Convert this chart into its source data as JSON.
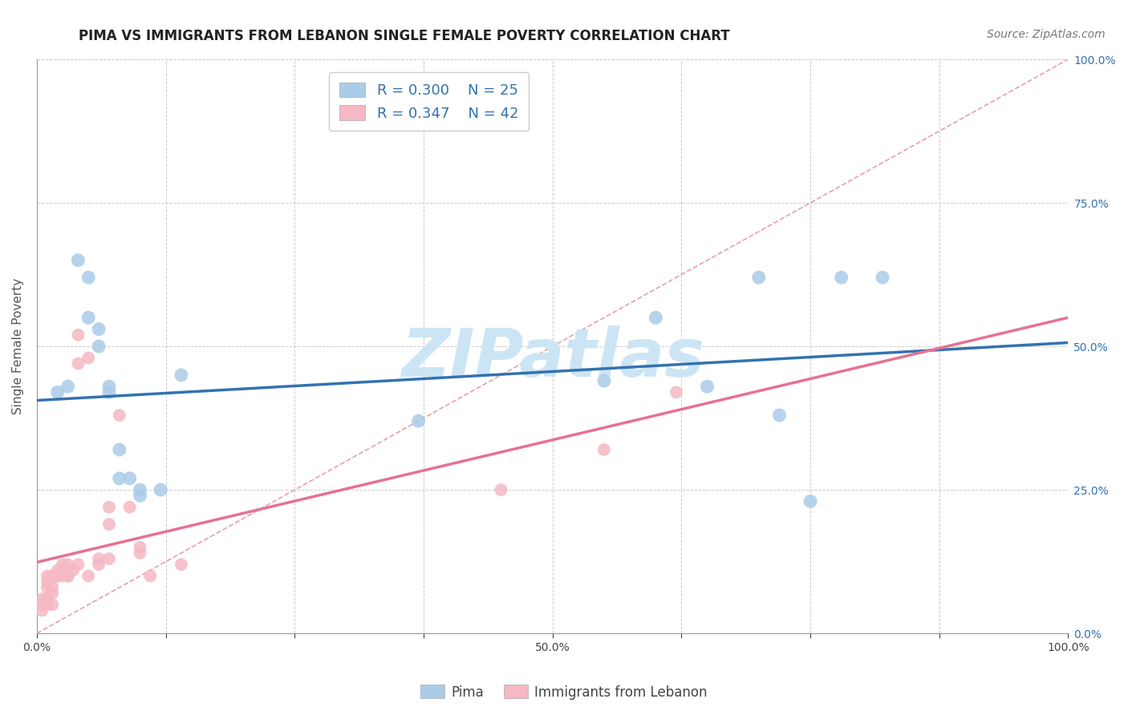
{
  "title": "PIMA VS IMMIGRANTS FROM LEBANON SINGLE FEMALE POVERTY CORRELATION CHART",
  "source": "Source: ZipAtlas.com",
  "ylabel": "Single Female Poverty",
  "watermark": "ZIPatlas",
  "legend_r1": "R = 0.300",
  "legend_n1": "N = 25",
  "legend_r2": "R = 0.347",
  "legend_n2": "N = 42",
  "xlim": [
    0,
    1
  ],
  "ylim": [
    0,
    1
  ],
  "xtick_positions": [
    0,
    0.125,
    0.25,
    0.375,
    0.5,
    0.625,
    0.75,
    0.875,
    1.0
  ],
  "xtick_labels": [
    "0.0%",
    "",
    "",
    "",
    "50.0%",
    "",
    "",
    "",
    "100.0%"
  ],
  "ytick_labels": [
    "0.0%",
    "25.0%",
    "50.0%",
    "75.0%",
    "100.0%"
  ],
  "pima_color": "#aacce8",
  "lebanon_color": "#f5b8c4",
  "pima_line_color": "#3272b0",
  "lebanon_line_color": "#e87090",
  "ref_line_color": "#e8a0a8",
  "background_color": "#ffffff",
  "pima_x": [
    0.02,
    0.03,
    0.04,
    0.05,
    0.05,
    0.06,
    0.06,
    0.07,
    0.07,
    0.08,
    0.08,
    0.09,
    0.1,
    0.1,
    0.12,
    0.14,
    0.37,
    0.55,
    0.6,
    0.65,
    0.7,
    0.72,
    0.75,
    0.78,
    0.82
  ],
  "pima_y": [
    0.42,
    0.43,
    0.65,
    0.62,
    0.55,
    0.53,
    0.5,
    0.43,
    0.42,
    0.32,
    0.27,
    0.27,
    0.25,
    0.24,
    0.25,
    0.45,
    0.37,
    0.44,
    0.55,
    0.43,
    0.62,
    0.38,
    0.23,
    0.62,
    0.62
  ],
  "lebanon_x": [
    0.005,
    0.005,
    0.005,
    0.01,
    0.01,
    0.01,
    0.01,
    0.01,
    0.015,
    0.015,
    0.015,
    0.015,
    0.02,
    0.02,
    0.02,
    0.02,
    0.025,
    0.025,
    0.03,
    0.03,
    0.03,
    0.03,
    0.035,
    0.04,
    0.04,
    0.04,
    0.05,
    0.05,
    0.06,
    0.06,
    0.07,
    0.07,
    0.07,
    0.08,
    0.09,
    0.1,
    0.1,
    0.11,
    0.14,
    0.45,
    0.55,
    0.62
  ],
  "lebanon_y": [
    0.04,
    0.05,
    0.06,
    0.05,
    0.06,
    0.08,
    0.09,
    0.1,
    0.05,
    0.07,
    0.08,
    0.1,
    0.1,
    0.1,
    0.1,
    0.11,
    0.1,
    0.12,
    0.1,
    0.1,
    0.1,
    0.12,
    0.11,
    0.12,
    0.47,
    0.52,
    0.1,
    0.48,
    0.12,
    0.13,
    0.13,
    0.19,
    0.22,
    0.38,
    0.22,
    0.14,
    0.15,
    0.1,
    0.12,
    0.25,
    0.32,
    0.42
  ],
  "title_fontsize": 12,
  "source_fontsize": 10,
  "axis_label_fontsize": 11,
  "tick_fontsize": 10,
  "legend_fontsize": 13,
  "watermark_fontsize": 60,
  "watermark_color": "#cce5f5",
  "grid_color": "#cccccc"
}
